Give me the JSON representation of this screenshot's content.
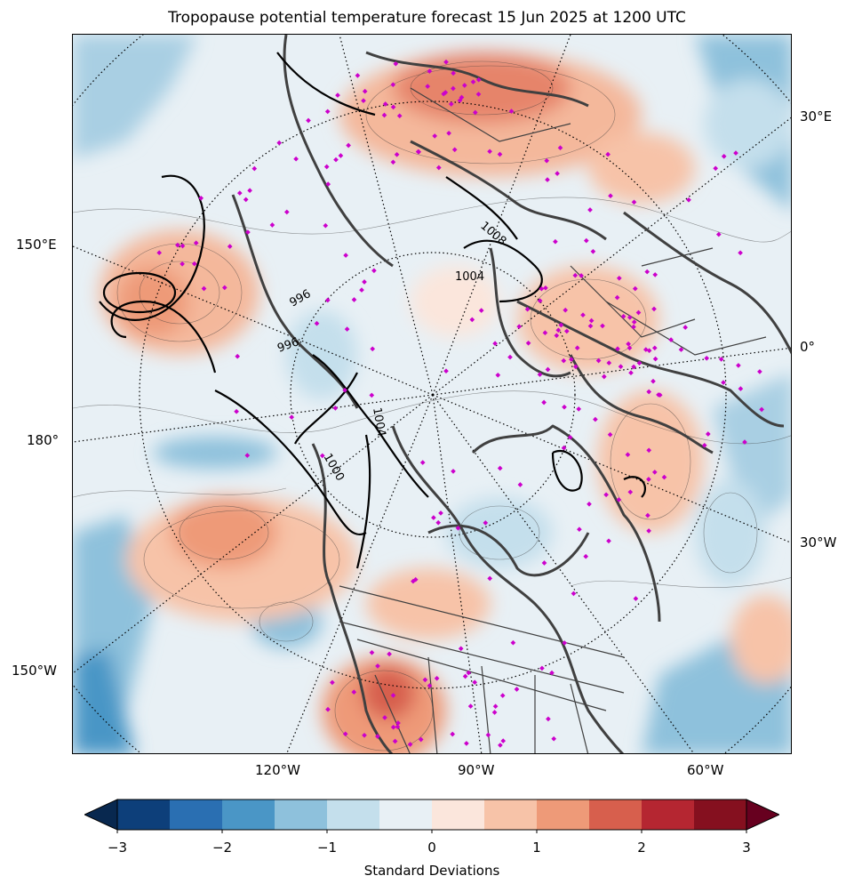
{
  "title": "Tropopause potential temperature forecast 15 Jun 2025 at 1200 UTC",
  "map": {
    "projection": "north-polar-stereographic",
    "longitude_labels": [
      "30°E",
      "150°E",
      "0°",
      "180°",
      "30°W",
      "150°W",
      "120°W",
      "90°W",
      "60°W"
    ],
    "isobar_labels": [
      "1008",
      "1004",
      "996",
      "996",
      "1004",
      "1000"
    ],
    "station_marker_color": "#cc00cc",
    "coastline_color": "#404040"
  },
  "colorbar": {
    "label": "Standard Deviations",
    "ticks": [
      "−3",
      "−2",
      "−1",
      "0",
      "1",
      "2",
      "3"
    ],
    "levels": [
      -3,
      -2.5,
      -2,
      -1.5,
      -1,
      -0.5,
      0,
      0.5,
      1,
      1.5,
      2,
      2.5,
      3
    ],
    "colors": [
      "#0d3f7a",
      "#2a6fb2",
      "#4a96c6",
      "#8ec1dc",
      "#c4dfec",
      "#e8f0f5",
      "#fbe6dc",
      "#f7c3a8",
      "#ee9a78",
      "#d75f4d",
      "#b52631",
      "#85101f"
    ],
    "under_color": "#08284f",
    "over_color": "#67001f"
  }
}
